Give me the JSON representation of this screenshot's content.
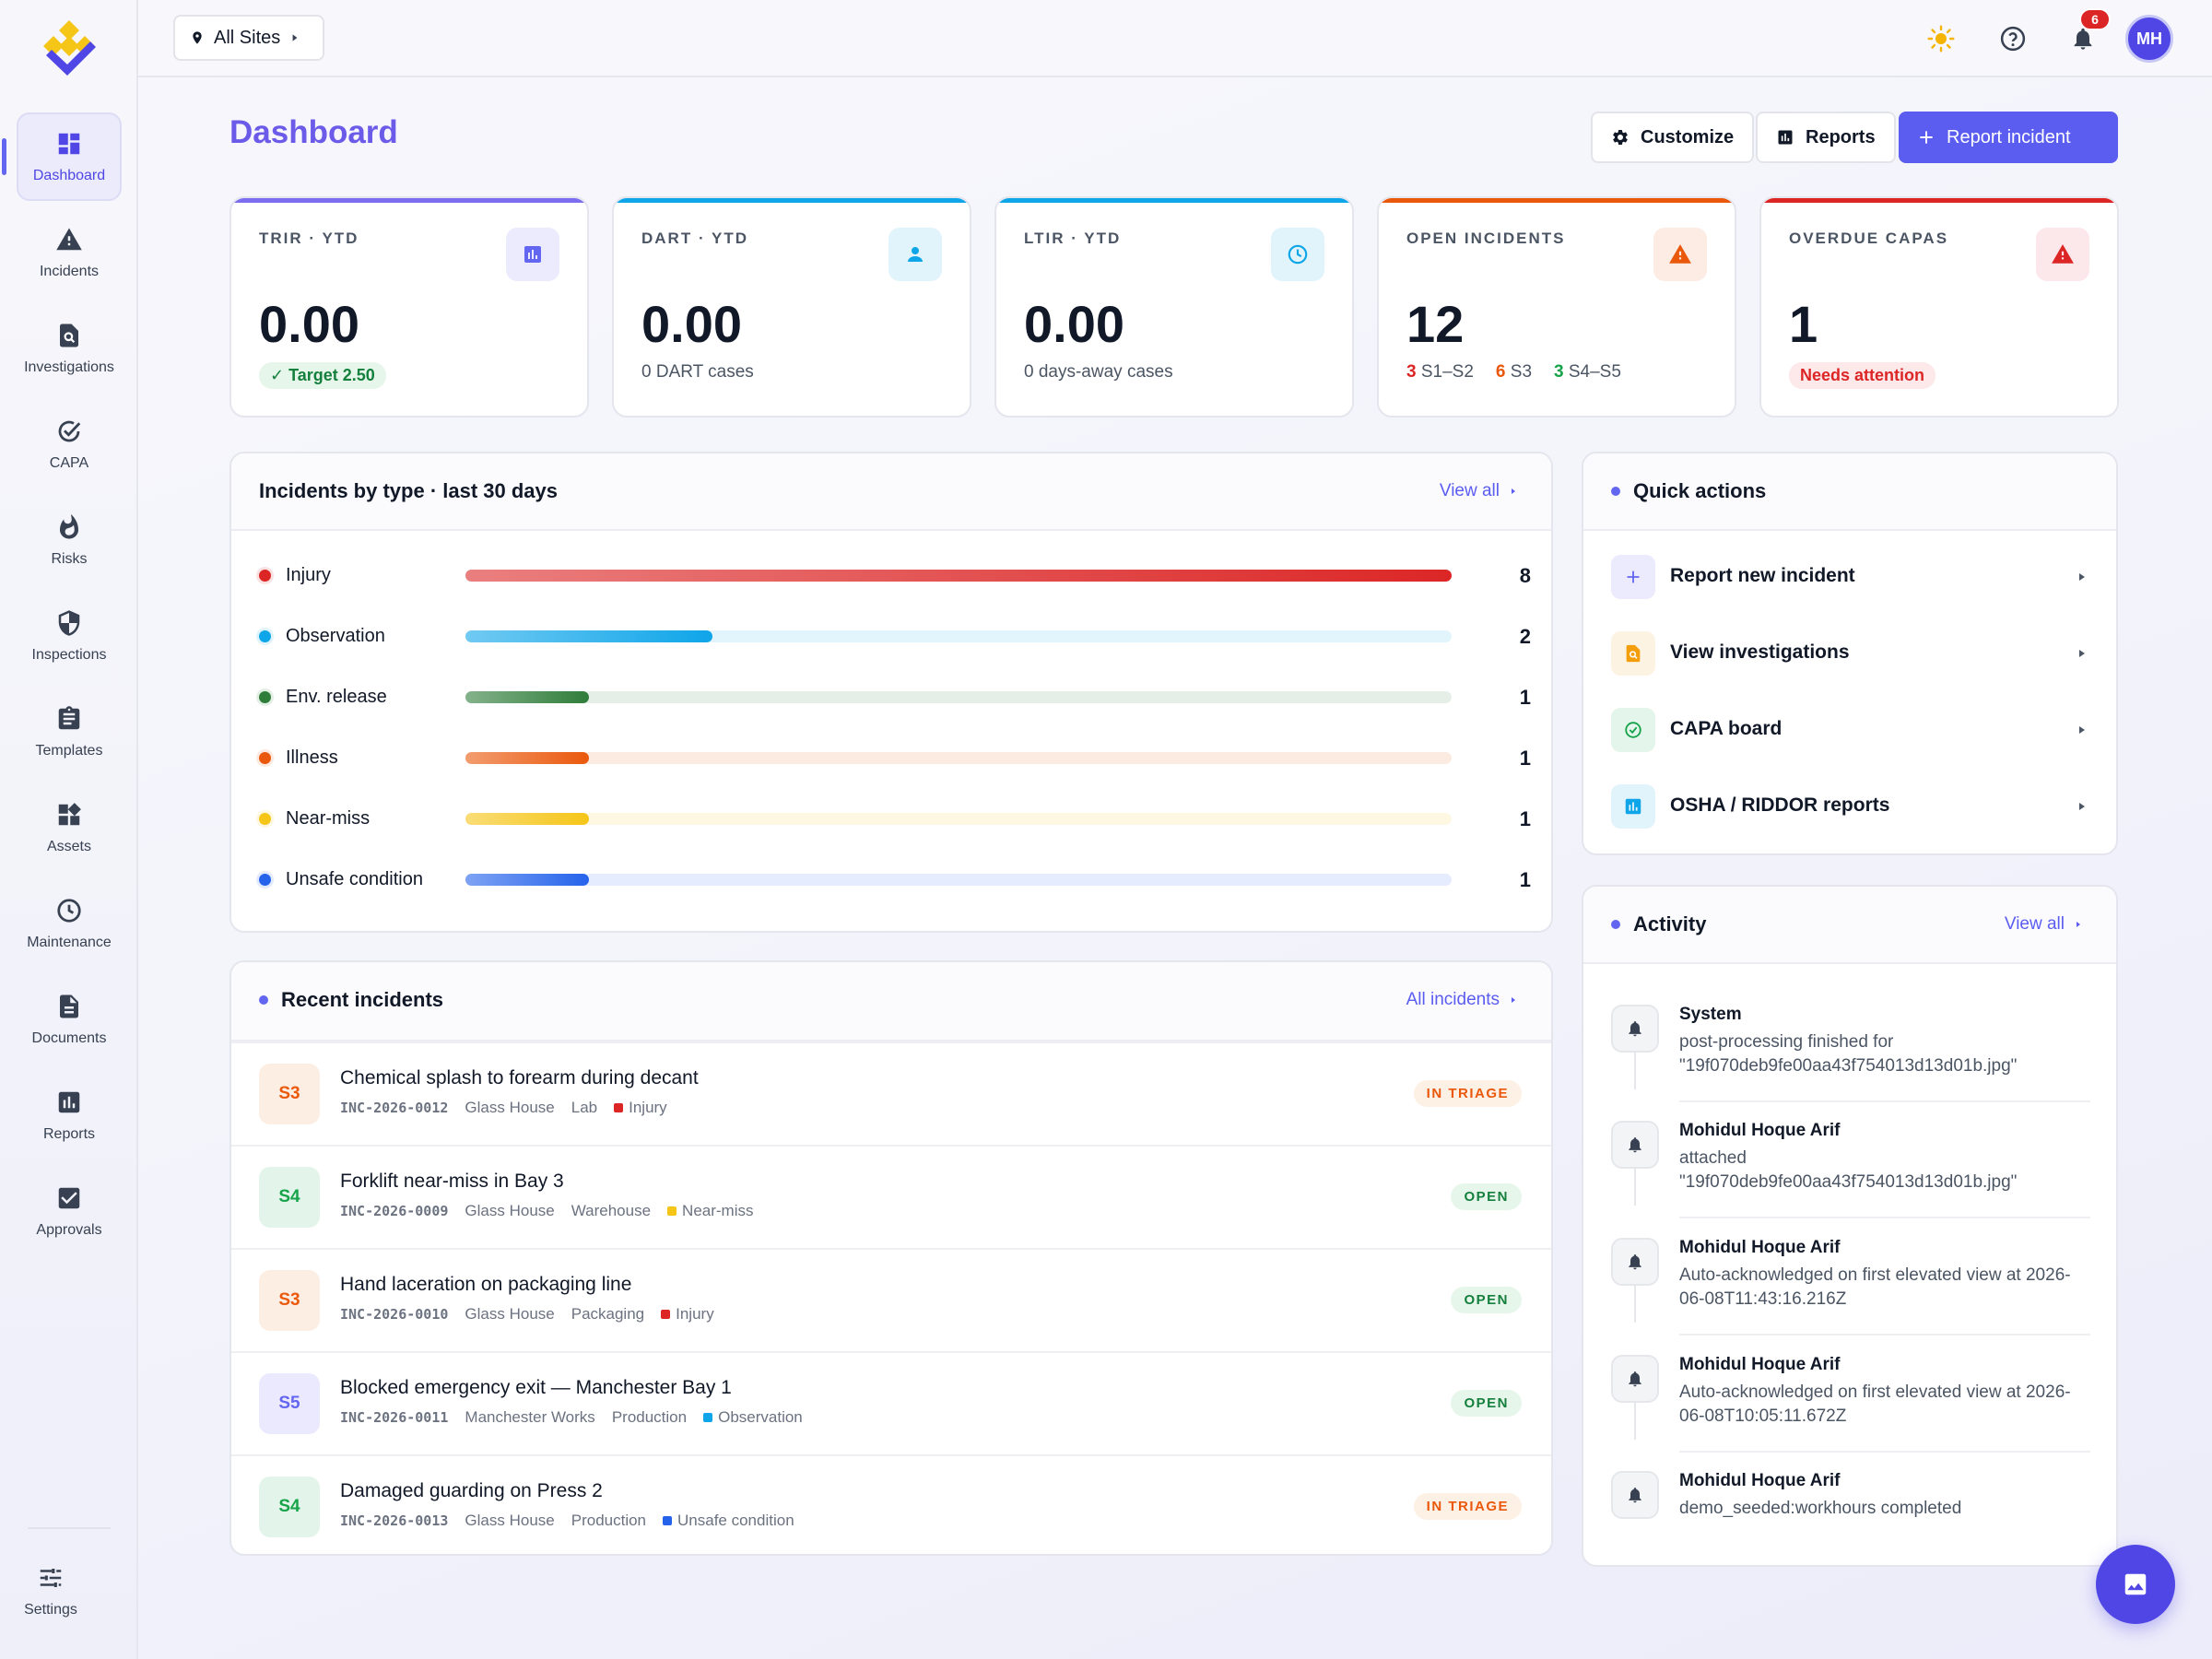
{
  "nav": {
    "items": [
      {
        "label": "Dashboard",
        "icon": "dashboard-icon",
        "active": true
      },
      {
        "label": "Incidents",
        "icon": "warning-icon"
      },
      {
        "label": "Investigations",
        "icon": "search-document-icon"
      },
      {
        "label": "CAPA",
        "icon": "check-circle-icon"
      },
      {
        "label": "Risks",
        "icon": "flame-icon"
      },
      {
        "label": "Inspections",
        "icon": "shield-icon"
      },
      {
        "label": "Templates",
        "icon": "clipboard-icon"
      },
      {
        "label": "Assets",
        "icon": "widgets-icon"
      },
      {
        "label": "Maintenance",
        "icon": "clock-icon"
      },
      {
        "label": "Documents",
        "icon": "document-icon"
      },
      {
        "label": "Reports",
        "icon": "bar-chart-icon"
      },
      {
        "label": "Approvals",
        "icon": "checkbox-icon"
      }
    ],
    "settings_label": "Settings"
  },
  "topbar": {
    "site_selector": "All Sites",
    "notification_count": "6",
    "avatar_initials": "MH"
  },
  "header": {
    "title": "Dashboard",
    "customize_label": "Customize",
    "reports_label": "Reports",
    "report_incident_label": "Report incident"
  },
  "kpis": [
    {
      "label": "TRIR · YTD",
      "value": "0.00",
      "sub": "✓ Target 2.50",
      "accent": "#7c6cf0"
    },
    {
      "label": "DART · YTD",
      "value": "0.00",
      "sub": "0 DART cases",
      "accent": "#0ea5e9"
    },
    {
      "label": "LTIR · YTD",
      "value": "0.00",
      "sub": "0 days-away cases",
      "accent": "#0ea5e9"
    },
    {
      "label": "OPEN INCIDENTS",
      "value": "12",
      "sub_parts": [
        {
          "count": "3",
          "label": "S1–S2",
          "color": "#dc2626"
        },
        {
          "count": "6",
          "label": "S3",
          "color": "#ea580c"
        },
        {
          "count": "3",
          "label": "S4–S5",
          "color": "#16a34a"
        }
      ],
      "accent": "#ea580c"
    },
    {
      "label": "OVERDUE CAPAS",
      "value": "1",
      "sub": "Needs attention",
      "accent": "#dc2626"
    }
  ],
  "incidents_by_type": {
    "title": "Incidents by type · last 30 days",
    "view_all": "View all",
    "max": 8,
    "rows": [
      {
        "label": "Injury",
        "count": 8,
        "color": "#dc2626"
      },
      {
        "label": "Observation",
        "count": 2,
        "color": "#0ea5e9"
      },
      {
        "label": "Env. release",
        "count": 1,
        "color": "#2f7d3a"
      },
      {
        "label": "Illness",
        "count": 1,
        "color": "#ea580c"
      },
      {
        "label": "Near-miss",
        "count": 1,
        "color": "#f5c518"
      },
      {
        "label": "Unsafe condition",
        "count": 1,
        "color": "#2563eb"
      }
    ]
  },
  "recent_incidents": {
    "title": "Recent incidents",
    "all_link": "All incidents",
    "rows": [
      {
        "sev": "S3",
        "title": "Chemical splash to forearm during decant",
        "code": "INC-2026-0012",
        "site": "Glass House",
        "area": "Lab",
        "type": "Injury",
        "type_color": "#dc2626",
        "status": "IN TRIAGE"
      },
      {
        "sev": "S4",
        "title": "Forklift near-miss in Bay 3",
        "code": "INC-2026-0009",
        "site": "Glass House",
        "area": "Warehouse",
        "type": "Near-miss",
        "type_color": "#f5c518",
        "status": "OPEN"
      },
      {
        "sev": "S3",
        "title": "Hand laceration on packaging line",
        "code": "INC-2026-0010",
        "site": "Glass House",
        "area": "Packaging",
        "type": "Injury",
        "type_color": "#dc2626",
        "status": "OPEN"
      },
      {
        "sev": "S5",
        "title": "Blocked emergency exit — Manchester Bay 1",
        "code": "INC-2026-0011",
        "site": "Manchester Works",
        "area": "Production",
        "type": "Observation",
        "type_color": "#0ea5e9",
        "status": "OPEN"
      },
      {
        "sev": "S4",
        "title": "Damaged guarding on Press 2",
        "code": "INC-2026-0013",
        "site": "Glass House",
        "area": "Production",
        "type": "Unsafe condition",
        "type_color": "#2563eb",
        "status": "IN TRIAGE"
      }
    ]
  },
  "quick_actions": {
    "title": "Quick actions",
    "items": [
      {
        "label": "Report new incident",
        "icon": "plus-icon"
      },
      {
        "label": "View investigations",
        "icon": "search-document-icon"
      },
      {
        "label": "CAPA board",
        "icon": "check-circle-icon"
      },
      {
        "label": "OSHA / RIDDOR reports",
        "icon": "bar-chart-icon"
      }
    ]
  },
  "activity": {
    "title": "Activity",
    "view_all": "View all",
    "items": [
      {
        "actor": "System",
        "text": "post-processing finished for \"19f070deb9fe00aa43f754013d13d01b.jpg\""
      },
      {
        "actor": "Mohidul Hoque Arif",
        "text": "attached \"19f070deb9fe00aa43f754013d13d01b.jpg\""
      },
      {
        "actor": "Mohidul Hoque Arif",
        "text": "Auto-acknowledged on first elevated view at 2026-06-08T11:43:16.216Z"
      },
      {
        "actor": "Mohidul Hoque Arif",
        "text": "Auto-acknowledged on first elevated view at 2026-06-08T10:05:11.672Z"
      },
      {
        "actor": "Mohidul Hoque Arif",
        "text": "demo_seeded:workhours completed"
      }
    ]
  }
}
